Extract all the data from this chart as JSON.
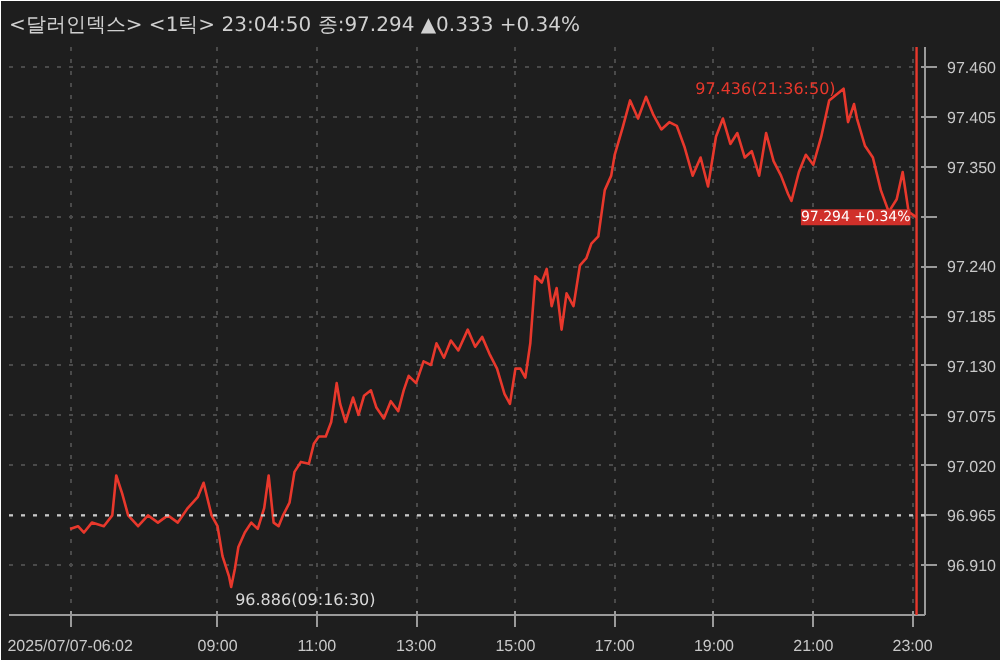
{
  "chart_data": {
    "type": "line",
    "title": "<달러인덱스> <1틱> 23:04:50 종:97.294 ▲0.333 +0.34%",
    "x": [
      6.03,
      6.19,
      6.31,
      6.47,
      6.71,
      6.88,
      6.96,
      7.08,
      7.2,
      7.4,
      7.6,
      7.8,
      8.0,
      8.2,
      8.4,
      8.6,
      8.72,
      8.88,
      9.0,
      9.1,
      9.23,
      9.275,
      9.35,
      9.42,
      9.55,
      9.68,
      9.81,
      9.94,
      10.03,
      10.13,
      10.23,
      10.32,
      10.45,
      10.55,
      10.68,
      10.84,
      10.94,
      11.04,
      11.18,
      11.29,
      11.4,
      11.47,
      11.58,
      11.73,
      11.84,
      11.95,
      12.09,
      12.2,
      12.35,
      12.49,
      12.64,
      12.75,
      12.85,
      13.0,
      13.15,
      13.3,
      13.41,
      13.56,
      13.7,
      13.85,
      14.04,
      14.19,
      14.33,
      14.48,
      14.63,
      14.78,
      14.89,
      15.0,
      15.1,
      15.2,
      15.3,
      15.4,
      15.53,
      15.63,
      15.73,
      15.83,
      15.93,
      16.03,
      16.17,
      16.3,
      16.43,
      16.53,
      16.67,
      16.8,
      16.93,
      17.0,
      17.16,
      17.31,
      17.47,
      17.63,
      17.78,
      17.94,
      18.1,
      18.25,
      18.41,
      18.57,
      18.73,
      18.88,
      19.04,
      19.18,
      19.33,
      19.47,
      19.62,
      19.76,
      19.91,
      20.05,
      20.2,
      20.35,
      20.49,
      20.56,
      20.71,
      20.85,
      21.0,
      21.16,
      21.32,
      21.61,
      21.7,
      21.82,
      21.88,
      22.04,
      22.2,
      22.36,
      22.52,
      22.68,
      22.8,
      22.92,
      23.08
    ],
    "series": [
      {
        "color": "#e8382c",
        "values": [
          96.95,
          96.953,
          96.946,
          96.957,
          96.953,
          96.965,
          97.009,
          96.989,
          96.965,
          96.953,
          96.965,
          96.957,
          96.965,
          96.957,
          96.973,
          96.985,
          97.001,
          96.965,
          96.953,
          96.92,
          96.898,
          96.886,
          96.906,
          96.93,
          96.946,
          96.957,
          96.95,
          96.973,
          97.009,
          96.957,
          96.953,
          96.965,
          96.979,
          97.013,
          97.024,
          97.022,
          97.044,
          97.052,
          97.052,
          97.068,
          97.111,
          97.088,
          97.068,
          97.095,
          97.076,
          97.097,
          97.103,
          97.084,
          97.072,
          97.091,
          97.08,
          97.103,
          97.119,
          97.111,
          97.135,
          97.131,
          97.155,
          97.139,
          97.158,
          97.147,
          97.17,
          97.151,
          97.162,
          97.143,
          97.127,
          97.099,
          97.088,
          97.127,
          97.127,
          97.117,
          97.155,
          97.229,
          97.222,
          97.237,
          97.196,
          97.216,
          97.17,
          97.21,
          97.196,
          97.241,
          97.249,
          97.265,
          97.273,
          97.324,
          97.34,
          97.363,
          97.393,
          97.423,
          97.403,
          97.427,
          97.407,
          97.391,
          97.399,
          97.395,
          97.371,
          97.34,
          97.36,
          97.328,
          97.383,
          97.403,
          97.375,
          97.387,
          97.36,
          97.367,
          97.34,
          97.387,
          97.356,
          97.34,
          97.32,
          97.312,
          97.344,
          97.363,
          97.352,
          97.383,
          97.423,
          97.436,
          97.399,
          97.419,
          97.403,
          97.373,
          97.36,
          97.324,
          97.3,
          97.314,
          97.344,
          97.3,
          97.294
        ]
      }
    ],
    "xlim": [
      4.8,
      23.25
    ],
    "ylim": [
      96.855,
      97.482
    ],
    "xticks": [
      {
        "value": 6.033,
        "label": "2025/07/07-06:02"
      },
      {
        "value": 9,
        "label": "09:00"
      },
      {
        "value": 11,
        "label": "11:00"
      },
      {
        "value": 13,
        "label": "13:00"
      },
      {
        "value": 15,
        "label": "15:00"
      },
      {
        "value": 17,
        "label": "17:00"
      },
      {
        "value": 19,
        "label": "19:00"
      },
      {
        "value": 21,
        "label": "21:00"
      },
      {
        "value": 23,
        "label": "23:00"
      }
    ],
    "yticks": [
      {
        "value": 96.91,
        "label": "96.910"
      },
      {
        "value": 96.965,
        "label": "96.965"
      },
      {
        "value": 97.02,
        "label": "97.020"
      },
      {
        "value": 97.075,
        "label": "97.075"
      },
      {
        "value": 97.13,
        "label": "97.130"
      },
      {
        "value": 97.185,
        "label": "97.185"
      },
      {
        "value": 97.24,
        "label": "97.240"
      },
      {
        "value": 97.295,
        "label": null
      },
      {
        "value": 97.35,
        "label": "97.350"
      },
      {
        "value": 97.405,
        "label": "97.405"
      },
      {
        "value": 97.46,
        "label": "97.460"
      }
    ],
    "ref_lines": [
      {
        "axis": "y",
        "value": 96.965,
        "label": null,
        "color": "#c8c8c8",
        "line_style": "dotted"
      },
      {
        "axis": "x",
        "value": 23.08,
        "label": null,
        "color": "#e8382c",
        "line_style": "solid"
      }
    ],
    "annotations": [
      {
        "text": "96.886(09:16:30)",
        "x": 9.275,
        "y": 96.886
      },
      {
        "text": "97.436(21:36:50)",
        "x": 21.61,
        "y": 97.436
      },
      {
        "text": "97.294 +0.34%",
        "x": 23.08,
        "y": 97.294
      }
    ],
    "grid": true,
    "line_style": "solid",
    "marker": "none"
  }
}
